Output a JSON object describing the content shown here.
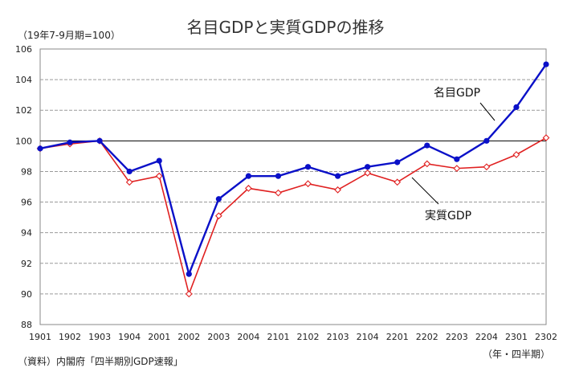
{
  "chart_data": {
    "type": "line",
    "title": "名目GDPと実質GDPの推移",
    "unit_note": "（19年7-9月期=100）",
    "x_unit_note": "（年・四半期）",
    "source": "（資料）内閣府「四半期別GDP速報」",
    "categories": [
      "1901",
      "1902",
      "1903",
      "1904",
      "2001",
      "2002",
      "2003",
      "2004",
      "2101",
      "2102",
      "2103",
      "2104",
      "2201",
      "2202",
      "2203",
      "2204",
      "2301",
      "2302"
    ],
    "ylim": [
      88,
      106
    ],
    "yticks": [
      88,
      90,
      92,
      94,
      96,
      98,
      100,
      102,
      104,
      106
    ],
    "reference_line": 100,
    "grid": true,
    "series": [
      {
        "name": "名目GDP",
        "color": "#0a10c8",
        "marker": "filled-circle",
        "values": [
          99.5,
          99.9,
          100.0,
          98.0,
          98.7,
          91.3,
          96.2,
          97.7,
          97.7,
          98.3,
          97.7,
          98.3,
          98.6,
          99.7,
          98.8,
          100.0,
          102.2,
          105.0
        ]
      },
      {
        "name": "実質GDP",
        "color": "#e02020",
        "marker": "hollow-diamond",
        "values": [
          99.5,
          99.8,
          100.0,
          97.3,
          97.7,
          90.0,
          95.1,
          96.9,
          96.6,
          97.2,
          96.8,
          97.9,
          97.3,
          98.5,
          98.2,
          98.3,
          99.1,
          100.2
        ]
      }
    ]
  }
}
